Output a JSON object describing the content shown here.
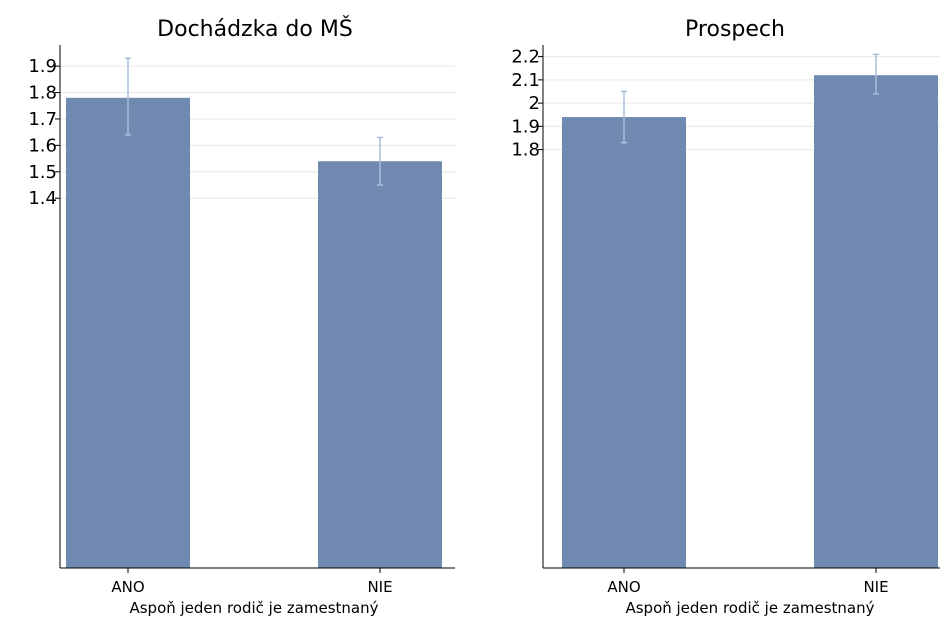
{
  "colors": {
    "bar": "#7089b0",
    "errorbar": "#a9bddb",
    "grid": "#e6e6e6",
    "axis": "#000000"
  },
  "chart_data": [
    {
      "type": "bar",
      "title": "Dochádzka do MŠ",
      "xlabel": "Aspoň jeden rodič je zamestnaný",
      "ylabel": "",
      "categories": [
        "ANO",
        "NIE"
      ],
      "values": [
        1.78,
        1.54
      ],
      "ci_lower": [
        1.64,
        1.45
      ],
      "ci_upper": [
        1.93,
        1.63
      ],
      "yticks": [
        1.4,
        1.5,
        1.6,
        1.7,
        1.8,
        1.9
      ],
      "ytick_labels": [
        "1.4",
        "1.5",
        "1.6",
        "1.7",
        "1.8",
        "1.9"
      ],
      "ylim": [
        0.0,
        1.98
      ],
      "grid": true,
      "legend": "none"
    },
    {
      "type": "bar",
      "title": "Prospech",
      "xlabel": "Aspoň jeden rodič je zamestnaný",
      "ylabel": "",
      "categories": [
        "ANO",
        "NIE"
      ],
      "values": [
        1.94,
        2.12
      ],
      "ci_lower": [
        1.83,
        2.04
      ],
      "ci_upper": [
        2.05,
        2.21
      ],
      "yticks": [
        1.8,
        1.9,
        2.0,
        2.1,
        2.2
      ],
      "ytick_labels": [
        "1.8",
        "1.9",
        "2",
        "2.1",
        "2.2"
      ],
      "ylim": [
        0.0,
        2.25
      ],
      "grid": true,
      "legend": "none"
    }
  ]
}
